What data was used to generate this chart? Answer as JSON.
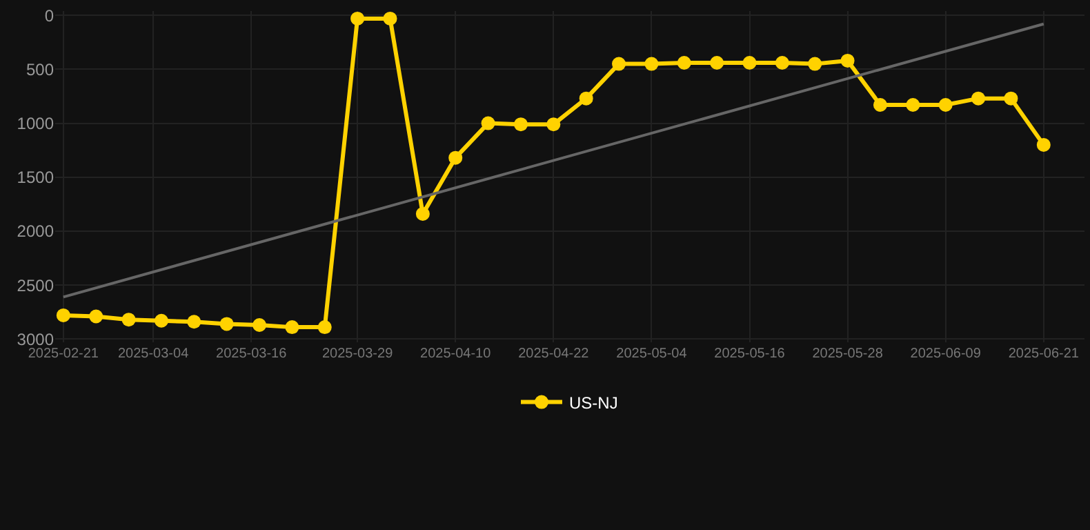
{
  "chart_data": {
    "type": "line",
    "x": [
      "2025-02-21",
      "2025-02-25",
      "2025-03-01",
      "2025-03-05",
      "2025-03-09",
      "2025-03-13",
      "2025-03-17",
      "2025-03-21",
      "2025-03-25",
      "2025-03-29",
      "2025-04-02",
      "2025-04-06",
      "2025-04-10",
      "2025-04-14",
      "2025-04-18",
      "2025-04-22",
      "2025-04-26",
      "2025-04-30",
      "2025-05-04",
      "2025-05-08",
      "2025-05-12",
      "2025-05-16",
      "2025-05-20",
      "2025-05-24",
      "2025-05-28",
      "2025-06-01",
      "2025-06-05",
      "2025-06-09",
      "2025-06-13",
      "2025-06-17",
      "2025-06-21"
    ],
    "series": [
      {
        "name": "US-NJ",
        "color": "#ffd200",
        "marker": "circle",
        "values": [
          2780,
          2790,
          2820,
          2830,
          2840,
          2860,
          2870,
          2890,
          2890,
          30,
          30,
          1840,
          1320,
          1000,
          1010,
          1010,
          770,
          450,
          450,
          440,
          440,
          440,
          440,
          450,
          420,
          830,
          830,
          830,
          770,
          770,
          1200
        ]
      },
      {
        "type": "line",
        "color": "#666666",
        "marker": "none",
        "x": [
          "2025-02-21",
          "2025-06-21"
        ],
        "values": [
          2610,
          80
        ]
      }
    ],
    "xlim": [
      "2025-02-20",
      "2025-06-26"
    ],
    "xticks": [
      "2025-02-21",
      "2025-03-04",
      "2025-03-16",
      "2025-03-29",
      "2025-04-10",
      "2025-04-22",
      "2025-05-04",
      "2025-05-16",
      "2025-05-28",
      "2025-06-09",
      "2025-06-21"
    ],
    "ylim": [
      3030,
      -40
    ],
    "yticks": [
      0,
      500,
      1000,
      1500,
      2000,
      2500,
      3000
    ],
    "grid": true,
    "legend": "bottom"
  }
}
